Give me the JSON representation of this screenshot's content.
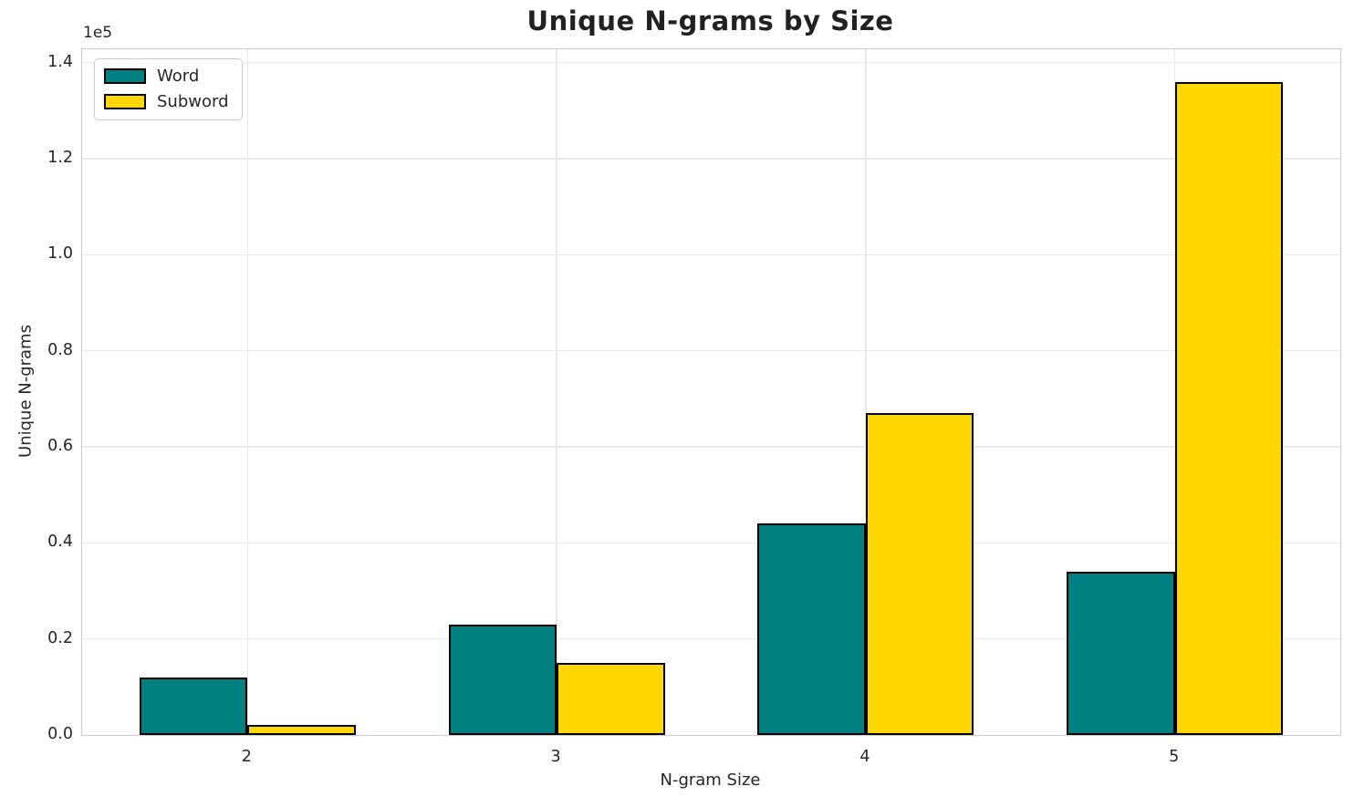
{
  "chart_data": {
    "type": "bar",
    "title": "Unique N-grams by Size",
    "xlabel": "N-gram Size",
    "ylabel": "Unique N-grams",
    "y_offset_label": "1e5",
    "categories": [
      "2",
      "3",
      "4",
      "5"
    ],
    "series": [
      {
        "name": "Word",
        "color": "#008080",
        "values": [
          12000,
          23000,
          44000,
          34000
        ]
      },
      {
        "name": "Subword",
        "color": "#FFD700",
        "values": [
          2000,
          15000,
          67000,
          136000
        ]
      }
    ],
    "bar_edge_color": "#000000",
    "ylim": [
      0,
      142800
    ],
    "xlim": [
      -0.535,
      3.535
    ],
    "bar_width_units": 0.35,
    "yticks": {
      "values": [
        0,
        20000,
        40000,
        60000,
        80000,
        100000,
        120000,
        140000
      ],
      "labels": [
        "0.0",
        "0.2",
        "0.4",
        "0.6",
        "0.8",
        "1.0",
        "1.2",
        "1.4"
      ]
    },
    "grid": true,
    "legend_position": "upper left",
    "grid_color": "#e9e9e9",
    "spine_color": "#cccccc",
    "text_color": "#262626"
  }
}
